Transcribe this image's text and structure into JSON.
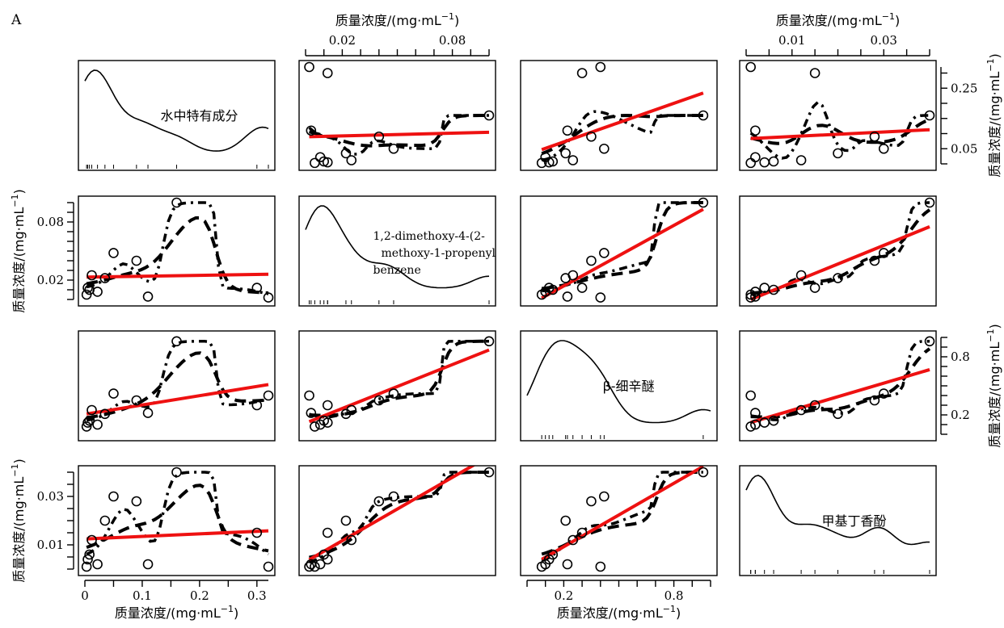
{
  "panel_letter": "A",
  "chart_data": {
    "type": "scatter",
    "description_kind": "scatterplot-matrix",
    "variables": [
      {
        "name": "水中特有成分",
        "lines": [
          "水中特有成分"
        ],
        "range": [
          0,
          0.32
        ],
        "ticks": [
          0,
          0.1,
          0.2,
          0.3
        ],
        "tick_labels": [
          "0",
          "0.1",
          "0.2",
          "0.3"
        ]
      },
      {
        "name": "1,2-dimethoxy-4-(2-methoxy-1-propenyl) benzene",
        "lines": [
          "1,2-dimethoxy-4-(2-",
          "methoxy-1-propenyl)",
          "benzene"
        ],
        "range": [
          0,
          0.1
        ],
        "ticks": [
          0.02,
          0.08
        ],
        "tick_labels": [
          "0.02",
          "0.08"
        ]
      },
      {
        "name": "β-细辛醚",
        "lines": [
          "β-细辛醚"
        ],
        "range": [
          0,
          1.0
        ],
        "ticks": [
          0.2,
          0.8
        ],
        "tick_labels": [
          "0.2",
          "0.8"
        ]
      },
      {
        "name": "甲基丁香酚",
        "lines": [
          "甲基丁香酚"
        ],
        "range": [
          0,
          0.04
        ],
        "ticks": [
          0.01,
          0.03
        ],
        "tick_labels": [
          "0.01",
          "0.03"
        ]
      }
    ],
    "axis_label": "质量浓度/(mg·mL",
    "axis_label_sup": "−1",
    "axis_label_close": ")",
    "left_axis_ticks": {
      "row1": {
        "ticks": [
          0.02,
          0.08
        ],
        "labels": [
          "0.02",
          "0.08"
        ]
      },
      "row3": {
        "ticks": [
          0.01,
          0.03
        ],
        "labels": [
          "0.01",
          "0.03"
        ]
      }
    },
    "right_axis_ticks": {
      "row0": {
        "ticks": [
          0.05,
          0.25
        ],
        "labels": [
          "0.05",
          "0.25"
        ]
      },
      "row2": {
        "ticks": [
          0.2,
          0.8
        ],
        "labels": [
          "0.2",
          "0.8"
        ]
      }
    },
    "observations": [
      [
        0.003,
        0.005,
        0.08,
        0.001
      ],
      [
        0.005,
        0.012,
        0.12,
        0.004
      ],
      [
        0.012,
        0.025,
        0.25,
        0.012
      ],
      [
        0.022,
        0.008,
        0.1,
        0.002
      ],
      [
        0.05,
        0.048,
        0.42,
        0.03
      ],
      [
        0.09,
        0.04,
        0.35,
        0.028
      ],
      [
        0.16,
        0.1,
        0.96,
        0.04
      ],
      [
        0.11,
        0.003,
        0.22,
        0.002
      ],
      [
        0.3,
        0.012,
        0.3,
        0.015
      ],
      [
        0.32,
        0.002,
        0.4,
        0.001
      ],
      [
        0.008,
        0.01,
        0.14,
        0.006
      ],
      [
        0.035,
        0.022,
        0.21,
        0.02
      ]
    ],
    "regression_color": "#ee1111",
    "regression_style": "linear fit",
    "smoothers": "dashed and dash-dot loess curves",
    "density_on_diagonal": true
  }
}
